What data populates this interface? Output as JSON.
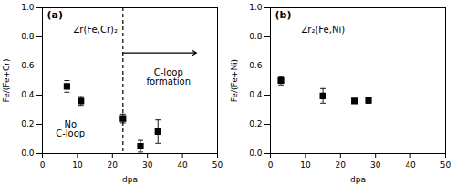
{
  "chart_data": [
    {
      "type": "scatter",
      "label": "(a)",
      "title": "Zr(Fe,Cr)₂",
      "xlabel": "dpa",
      "ylabel": "Fe/(Fe+Cr)",
      "xlim": [
        0,
        50
      ],
      "ylim": [
        0,
        1
      ],
      "xticks": [
        0,
        10,
        20,
        30,
        40,
        50
      ],
      "yticks": [
        {
          "value": 0,
          "label": "0.0"
        },
        0.2,
        0.4,
        0.6,
        0.8,
        {
          "value": 1,
          "label": "1.0"
        }
      ],
      "x": [
        7,
        11,
        23,
        28,
        33
      ],
      "values": [
        0.46,
        0.36,
        0.24,
        0.05,
        0.15
      ],
      "errors": [
        0.04,
        0.03,
        0.03,
        0.04,
        0.08
      ],
      "marker": "square",
      "color": "black",
      "vlines": [
        {
          "x": 23,
          "line_style": "dashed"
        }
      ],
      "arrows": [
        {
          "x_start": 23,
          "x_end": 44,
          "y": 0.69
        }
      ],
      "annotations": [
        {
          "text": "C-loop\nformation",
          "x": 36,
          "y": 0.58
        },
        {
          "text": "No\nC-loop",
          "x": 8,
          "y": 0.22
        }
      ]
    },
    {
      "type": "scatter",
      "label": "(b)",
      "title": "Zr₂(Fe,Ni)",
      "xlabel": "dpa",
      "ylabel": "Fe/(Fe+Ni)",
      "xlim": [
        0,
        50
      ],
      "ylim": [
        0,
        1
      ],
      "xticks": [
        0,
        10,
        20,
        30,
        40,
        50
      ],
      "yticks": [
        {
          "value": 0,
          "label": "0.0"
        },
        0.2,
        0.4,
        0.6,
        0.8,
        {
          "value": 1,
          "label": "1.0"
        }
      ],
      "x": [
        3,
        15,
        24,
        28
      ],
      "values": [
        0.5,
        0.395,
        0.36,
        0.365
      ],
      "errors": [
        0.03,
        0.05,
        0.01,
        0.02
      ],
      "marker": "square",
      "color": "black"
    }
  ]
}
